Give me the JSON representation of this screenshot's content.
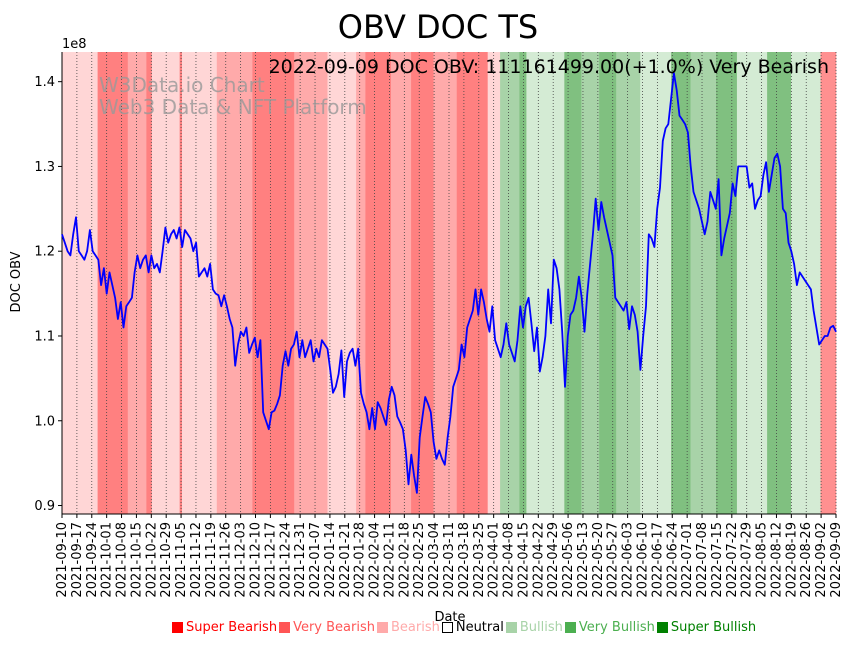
{
  "chart_data": {
    "type": "line",
    "title": "OBV DOC TS",
    "annotation": "2022-09-09 DOC OBV: 111161499.00(+1.0%) Very Bearish",
    "watermark_line1": "W3Data.io Chart",
    "watermark_line2": "Web3 Data & NFT Platform",
    "xlabel": "Date",
    "ylabel": "DOC OBV",
    "y_offset_label": "1e8",
    "ylim": [
      0.89,
      1.435
    ],
    "yticks": [
      "0.9",
      "1.0",
      "1.1",
      "1.2",
      "1.3",
      "1.4"
    ],
    "ytick_values": [
      0.9,
      1.0,
      1.1,
      1.2,
      1.3,
      1.4
    ],
    "xticks": [
      "2021-09-10",
      "2021-09-17",
      "2021-09-24",
      "2021-10-01",
      "2021-10-08",
      "2021-10-15",
      "2021-10-22",
      "2021-10-29",
      "2021-11-05",
      "2021-11-12",
      "2021-11-19",
      "2021-11-26",
      "2021-12-03",
      "2021-12-10",
      "2021-12-17",
      "2021-12-24",
      "2021-12-31",
      "2022-01-07",
      "2022-01-14",
      "2022-01-21",
      "2022-01-28",
      "2022-02-04",
      "2022-02-11",
      "2022-02-18",
      "2022-02-25",
      "2022-03-04",
      "2022-03-11",
      "2022-03-18",
      "2022-03-25",
      "2022-04-01",
      "2022-04-08",
      "2022-04-15",
      "2022-04-22",
      "2022-04-29",
      "2022-05-06",
      "2022-05-13",
      "2022-05-20",
      "2022-05-27",
      "2022-06-03",
      "2022-06-10",
      "2022-06-17",
      "2022-06-24",
      "2022-07-01",
      "2022-07-08",
      "2022-07-15",
      "2022-07-22",
      "2022-07-29",
      "2022-08-05",
      "2022-08-12",
      "2022-08-19",
      "2022-08-26",
      "2022-09-02",
      "2022-09-09"
    ],
    "line_color": "#0000ff",
    "series": [
      {
        "values": [
          1.22,
          1.21,
          1.2,
          1.195,
          1.22,
          1.24,
          1.2,
          1.195,
          1.19,
          1.2,
          1.225,
          1.2,
          1.195,
          1.19,
          1.16,
          1.18,
          1.15,
          1.175,
          1.16,
          1.145,
          1.12,
          1.14,
          1.11,
          1.135,
          1.14,
          1.145,
          1.175,
          1.195,
          1.18,
          1.19,
          1.195,
          1.175,
          1.195,
          1.18,
          1.185,
          1.175,
          1.2,
          1.228,
          1.21,
          1.22,
          1.225,
          1.215,
          1.228,
          1.205,
          1.225,
          1.22,
          1.215,
          1.2,
          1.21,
          1.17,
          1.175,
          1.18,
          1.17,
          1.185,
          1.155,
          1.15,
          1.148,
          1.135,
          1.148,
          1.135,
          1.12,
          1.11,
          1.065,
          1.09,
          1.105,
          1.1,
          1.11,
          1.08,
          1.09,
          1.098,
          1.075,
          1.095,
          1.01,
          1.0,
          0.99,
          1.01,
          1.012,
          1.02,
          1.03,
          1.065,
          1.082,
          1.065,
          1.085,
          1.09,
          1.105,
          1.075,
          1.095,
          1.075,
          1.085,
          1.095,
          1.07,
          1.085,
          1.075,
          1.095,
          1.09,
          1.085,
          1.06,
          1.033,
          1.04,
          1.055,
          1.083,
          1.028,
          1.07,
          1.08,
          1.085,
          1.065,
          1.085,
          1.033,
          1.02,
          1.01,
          0.99,
          1.015,
          0.99,
          1.022,
          1.015,
          1.005,
          0.995,
          1.025,
          1.04,
          1.03,
          1.005,
          0.998,
          0.99,
          0.965,
          0.925,
          0.96,
          0.935,
          0.915,
          0.98,
          1.005,
          1.028,
          1.02,
          1.01,
          0.975,
          0.955,
          0.965,
          0.955,
          0.948,
          0.98,
          1.005,
          1.04,
          1.05,
          1.06,
          1.09,
          1.075,
          1.11,
          1.12,
          1.13,
          1.155,
          1.125,
          1.155,
          1.14,
          1.12,
          1.105,
          1.135,
          1.095,
          1.085,
          1.075,
          1.09,
          1.115,
          1.09,
          1.08,
          1.07,
          1.095,
          1.135,
          1.11,
          1.135,
          1.145,
          1.115,
          1.082,
          1.11,
          1.058,
          1.075,
          1.1,
          1.155,
          1.115,
          1.19,
          1.18,
          1.155,
          1.105,
          1.04,
          1.1,
          1.125,
          1.13,
          1.145,
          1.17,
          1.145,
          1.105,
          1.15,
          1.185,
          1.22,
          1.262,
          1.225,
          1.258,
          1.24,
          1.225,
          1.21,
          1.195,
          1.145,
          1.14,
          1.135,
          1.13,
          1.14,
          1.108,
          1.135,
          1.125,
          1.105,
          1.06,
          1.1,
          1.135,
          1.22,
          1.215,
          1.205,
          1.25,
          1.275,
          1.33,
          1.345,
          1.35,
          1.38,
          1.41,
          1.39,
          1.36,
          1.355,
          1.35,
          1.34,
          1.3,
          1.27,
          1.26,
          1.25,
          1.235,
          1.22,
          1.235,
          1.27,
          1.26,
          1.25,
          1.285,
          1.195,
          1.215,
          1.23,
          1.245,
          1.28,
          1.265,
          1.3,
          1.3,
          1.3,
          1.3,
          1.275,
          1.28,
          1.25,
          1.26,
          1.265,
          1.29,
          1.305,
          1.27,
          1.29,
          1.31,
          1.315,
          1.3,
          1.25,
          1.245,
          1.21,
          1.2,
          1.185,
          1.16,
          1.175,
          1.17,
          1.165,
          1.16,
          1.155,
          1.13,
          1.11,
          1.09,
          1.095,
          1.1,
          1.1,
          1.11,
          1.112,
          1.105
        ]
      }
    ],
    "bands": [
      {
        "start": 0.0,
        "end": 0.046,
        "color": "#ffd6d6"
      },
      {
        "start": 0.046,
        "end": 0.085,
        "color": "#ff8080"
      },
      {
        "start": 0.085,
        "end": 0.109,
        "color": "#ffaaaa"
      },
      {
        "start": 0.109,
        "end": 0.116,
        "color": "#ff8080"
      },
      {
        "start": 0.116,
        "end": 0.152,
        "color": "#ffd6d6"
      },
      {
        "start": 0.152,
        "end": 0.155,
        "color": "#ff8080"
      },
      {
        "start": 0.155,
        "end": 0.2,
        "color": "#ffd6d6"
      },
      {
        "start": 0.2,
        "end": 0.246,
        "color": "#ffaaaa"
      },
      {
        "start": 0.246,
        "end": 0.3,
        "color": "#ff8080"
      },
      {
        "start": 0.3,
        "end": 0.343,
        "color": "#ffaaaa"
      },
      {
        "start": 0.343,
        "end": 0.38,
        "color": "#ffd6d6"
      },
      {
        "start": 0.38,
        "end": 0.392,
        "color": "#ffaaaa"
      },
      {
        "start": 0.392,
        "end": 0.425,
        "color": "#ff8080"
      },
      {
        "start": 0.425,
        "end": 0.451,
        "color": "#ffaaaa"
      },
      {
        "start": 0.451,
        "end": 0.48,
        "color": "#ff8080"
      },
      {
        "start": 0.48,
        "end": 0.51,
        "color": "#ffaaaa"
      },
      {
        "start": 0.51,
        "end": 0.55,
        "color": "#ff8080"
      },
      {
        "start": 0.55,
        "end": 0.566,
        "color": "#ffd6d6"
      },
      {
        "start": 0.566,
        "end": 0.591,
        "color": "#a8d3a8"
      },
      {
        "start": 0.591,
        "end": 0.6,
        "color": "#80c080"
      },
      {
        "start": 0.6,
        "end": 0.649,
        "color": "#d4ebd4"
      },
      {
        "start": 0.649,
        "end": 0.671,
        "color": "#80c080"
      },
      {
        "start": 0.671,
        "end": 0.694,
        "color": "#a8d3a8"
      },
      {
        "start": 0.694,
        "end": 0.716,
        "color": "#80c080"
      },
      {
        "start": 0.716,
        "end": 0.747,
        "color": "#a8d3a8"
      },
      {
        "start": 0.747,
        "end": 0.787,
        "color": "#d4ebd4"
      },
      {
        "start": 0.787,
        "end": 0.812,
        "color": "#80c080"
      },
      {
        "start": 0.812,
        "end": 0.845,
        "color": "#a8d3a8"
      },
      {
        "start": 0.845,
        "end": 0.872,
        "color": "#80c080"
      },
      {
        "start": 0.872,
        "end": 0.911,
        "color": "#d4ebd4"
      },
      {
        "start": 0.911,
        "end": 0.942,
        "color": "#80c080"
      },
      {
        "start": 0.942,
        "end": 0.98,
        "color": "#d4ebd4"
      },
      {
        "start": 0.98,
        "end": 1.0,
        "color": "#ff9090"
      }
    ],
    "legend": [
      {
        "label": "Super Bearish",
        "color": "#ff0000",
        "text_color": "#ff0000",
        "swatch_fill": "#ff0000"
      },
      {
        "label": "Very Bearish",
        "color": "#ff5555",
        "text_color": "#ff5555",
        "swatch_fill": "#ff5555"
      },
      {
        "label": "Bearish",
        "color": "#ffaaaa",
        "text_color": "#ffaaaa",
        "swatch_fill": "#ffaaaa"
      },
      {
        "label": "Neutral",
        "color": "#000000",
        "text_color": "#000000",
        "swatch_fill": "#ffffff"
      },
      {
        "label": "Bullish",
        "color": "#a8d3a8",
        "text_color": "#a8d3a8",
        "swatch_fill": "#a8d3a8"
      },
      {
        "label": "Very Bullish",
        "color": "#4caf50",
        "text_color": "#4caf50",
        "swatch_fill": "#4caf50"
      },
      {
        "label": "Super Bullish",
        "color": "#008000",
        "text_color": "#008000",
        "swatch_fill": "#008000"
      }
    ],
    "grid": "x-dotted",
    "legend_position": "bottom"
  }
}
